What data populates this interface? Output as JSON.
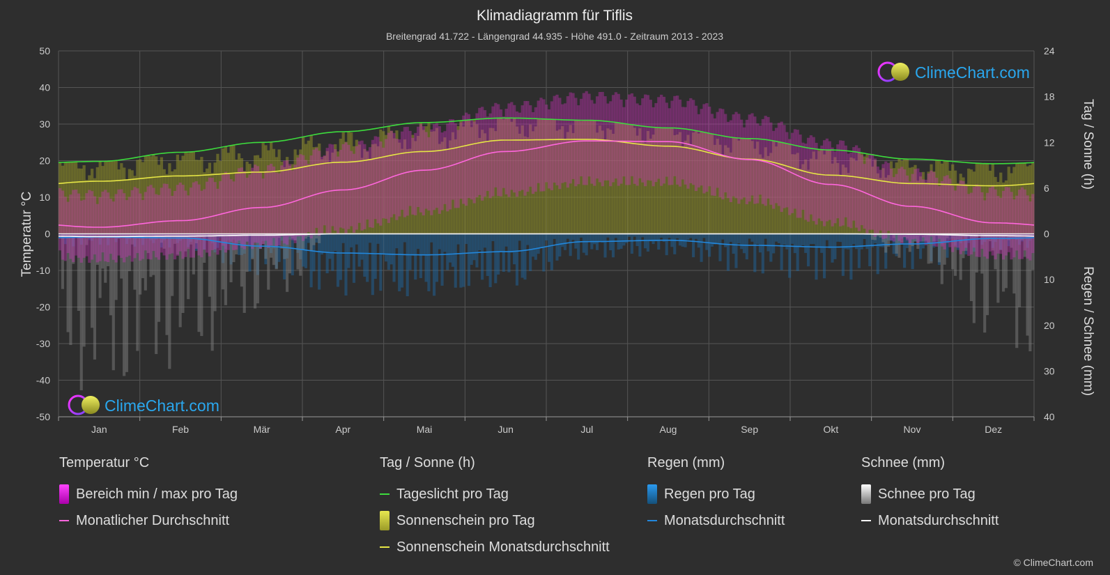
{
  "chart_data": {
    "type": "area",
    "title": "Klimadiagramm für Tiflis",
    "subtitle": "Breitengrad 41.722 - Längengrad 44.935 - Höhe 491.0 - Zeitraum 2013 - 2023",
    "y_left_label": "Temperatur °C",
    "y_right_top_label": "Tag / Sonne (h)",
    "y_right_bottom_label": "Regen / Schnee (mm)",
    "y_left_ticks": [
      50,
      40,
      30,
      20,
      10,
      0,
      -10,
      -20,
      -30,
      -40,
      -50
    ],
    "y_left_ticks_text": [
      "50",
      "40",
      "30",
      "20",
      "10",
      "0",
      "-10",
      "-20",
      "-30",
      "-40",
      "-50"
    ],
    "y_right_top_ticks": [
      24,
      18,
      12,
      6,
      0
    ],
    "y_right_top_ticks_text": [
      "24",
      "18",
      "12",
      "6",
      "0"
    ],
    "y_right_bottom_ticks": [
      10,
      20,
      30,
      40
    ],
    "y_right_bottom_ticks_text": [
      "10",
      "20",
      "30",
      "40"
    ],
    "ylim_temp": [
      -50,
      50
    ],
    "ylim_hours": [
      0,
      24
    ],
    "ylim_precip_mm": [
      0,
      40
    ],
    "months": [
      "Jan",
      "Feb",
      "Mär",
      "Apr",
      "Mai",
      "Jun",
      "Jul",
      "Aug",
      "Sep",
      "Okt",
      "Nov",
      "Dez"
    ],
    "series": [
      {
        "name": "Tageslicht pro Tag",
        "unit": "h",
        "color": "#3ddc3d",
        "values": [
          9.5,
          10.7,
          12.0,
          13.4,
          14.6,
          15.2,
          14.9,
          13.9,
          12.5,
          11.0,
          9.8,
          9.2
        ]
      },
      {
        "name": "Sonnenschein Monatsdurchschnitt",
        "unit": "h",
        "color": "#e6e645",
        "values": [
          6.9,
          7.6,
          8.1,
          9.4,
          10.8,
          12.3,
          12.4,
          11.5,
          9.8,
          7.7,
          6.6,
          6.3
        ]
      },
      {
        "name": "Monatlicher Durchschnitt",
        "unit": "°C",
        "color": "#ff66dd",
        "values": [
          1.8,
          3.6,
          7.2,
          12.0,
          17.4,
          22.5,
          25.4,
          25.2,
          20.3,
          13.5,
          7.5,
          3.0
        ]
      },
      {
        "name": "Temperatur min pro Tag",
        "unit": "°C",
        "values": [
          -2,
          -1,
          2,
          6,
          11,
          16,
          19,
          19,
          14,
          8,
          3,
          -1
        ]
      },
      {
        "name": "Temperatur max pro Tag",
        "unit": "°C",
        "values": [
          6,
          8,
          13,
          19,
          24,
          30,
          33,
          32,
          27,
          20,
          12,
          7
        ]
      },
      {
        "name": "Regen Monatsdurchschnitt",
        "unit": "mm",
        "color": "#2288dd",
        "values": [
          0.7,
          0.9,
          2.7,
          4.2,
          4.6,
          3.9,
          1.7,
          1.4,
          2.5,
          2.9,
          2.2,
          1.0
        ]
      },
      {
        "name": "Schnee Monatsdurchschnitt",
        "unit": "mm",
        "color": "#ffffff",
        "values": [
          0.6,
          0.5,
          0.3,
          0.0,
          0.0,
          0.0,
          0.0,
          0.0,
          0.0,
          0.0,
          0.1,
          0.4
        ]
      }
    ],
    "grid": true
  },
  "logo": {
    "text": "ClimeChart.com"
  },
  "legend": {
    "temperature": {
      "title": "Temperatur °C",
      "range_label": "Bereich min / max pro Tag",
      "avg_label": "Monatlicher Durchschnitt",
      "range_color": "#dd22dd",
      "avg_color": "#ff66dd"
    },
    "sun": {
      "title": "Tag / Sonne (h)",
      "daylight_label": "Tageslicht pro Tag",
      "sunshine_label": "Sonnenschein pro Tag",
      "sunshine_avg_label": "Sonnenschein Monatsdurchschnitt",
      "daylight_color": "#3ddc3d",
      "sunshine_color": "#c8c83a",
      "sunshine_avg_color": "#e6e645"
    },
    "rain": {
      "title": "Regen (mm)",
      "rain_label": "Regen pro Tag",
      "avg_label": "Monatsdurchschnitt",
      "rain_color": "#2288dd",
      "avg_color": "#2288dd"
    },
    "snow": {
      "title": "Schnee (mm)",
      "snow_label": "Schnee pro Tag",
      "avg_label": "Monatsdurchschnitt",
      "snow_color": "#dddddd",
      "avg_color": "#ffffff"
    }
  },
  "copyright": "© ClimeChart.com"
}
